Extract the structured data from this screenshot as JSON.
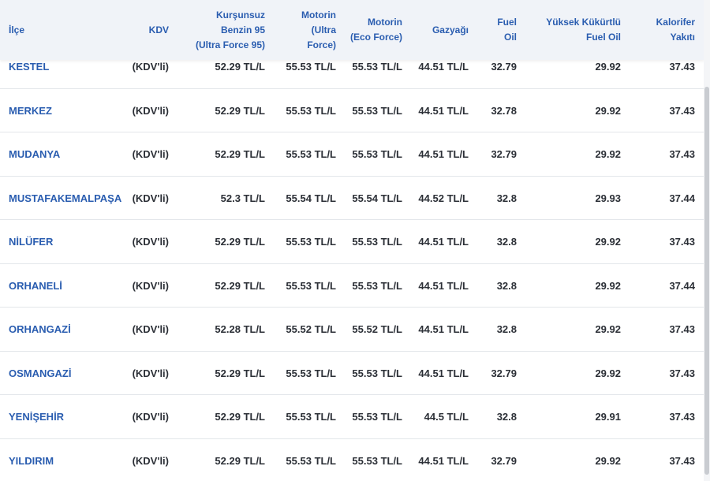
{
  "table": {
    "headers": {
      "ilce": "İlçe",
      "kdv": "KDV",
      "kursunsuz": [
        "Kurşunsuz",
        "Benzin 95",
        "(Ultra Force 95)"
      ],
      "motorin": [
        "Motorin",
        "(Ultra",
        "Force)"
      ],
      "motorin_eco": [
        "Motorin",
        "(Eco Force)"
      ],
      "gazyagi": "Gazyağı",
      "fuel_oil": [
        "Fuel",
        "Oil"
      ],
      "yuksek_kukurtlu": [
        "Yüksek Kükürtlü",
        "Fuel Oil"
      ],
      "kalorifer": [
        "Kalorifer",
        "Yakıtı"
      ]
    },
    "rows": [
      {
        "ilce": "KESTEL",
        "kdv": "(KDV'li)",
        "kursunsuz": "52.29 TL/L",
        "motorin": "55.53 TL/L",
        "motorin_eco": "55.53 TL/L",
        "gazyagi": "44.51 TL/L",
        "fuel_oil": "32.79",
        "yuksek_kukurtlu": "29.92",
        "kalorifer": "37.43"
      },
      {
        "ilce": "MERKEZ",
        "kdv": "(KDV'li)",
        "kursunsuz": "52.29 TL/L",
        "motorin": "55.53 TL/L",
        "motorin_eco": "55.53 TL/L",
        "gazyagi": "44.51 TL/L",
        "fuel_oil": "32.78",
        "yuksek_kukurtlu": "29.92",
        "kalorifer": "37.43"
      },
      {
        "ilce": "MUDANYA",
        "kdv": "(KDV'li)",
        "kursunsuz": "52.29 TL/L",
        "motorin": "55.53 TL/L",
        "motorin_eco": "55.53 TL/L",
        "gazyagi": "44.51 TL/L",
        "fuel_oil": "32.79",
        "yuksek_kukurtlu": "29.92",
        "kalorifer": "37.43"
      },
      {
        "ilce": "MUSTAFAKEMALPAŞA",
        "kdv": "(KDV'li)",
        "kursunsuz": "52.3 TL/L",
        "motorin": "55.54 TL/L",
        "motorin_eco": "55.54 TL/L",
        "gazyagi": "44.52 TL/L",
        "fuel_oil": "32.8",
        "yuksek_kukurtlu": "29.93",
        "kalorifer": "37.44"
      },
      {
        "ilce": "NİLÜFER",
        "kdv": "(KDV'li)",
        "kursunsuz": "52.29 TL/L",
        "motorin": "55.53 TL/L",
        "motorin_eco": "55.53 TL/L",
        "gazyagi": "44.51 TL/L",
        "fuel_oil": "32.8",
        "yuksek_kukurtlu": "29.92",
        "kalorifer": "37.43"
      },
      {
        "ilce": "ORHANELİ",
        "kdv": "(KDV'li)",
        "kursunsuz": "52.29 TL/L",
        "motorin": "55.53 TL/L",
        "motorin_eco": "55.53 TL/L",
        "gazyagi": "44.51 TL/L",
        "fuel_oil": "32.8",
        "yuksek_kukurtlu": "29.92",
        "kalorifer": "37.44"
      },
      {
        "ilce": "ORHANGAZİ",
        "kdv": "(KDV'li)",
        "kursunsuz": "52.28 TL/L",
        "motorin": "55.52 TL/L",
        "motorin_eco": "55.52 TL/L",
        "gazyagi": "44.51 TL/L",
        "fuel_oil": "32.8",
        "yuksek_kukurtlu": "29.92",
        "kalorifer": "37.43"
      },
      {
        "ilce": "OSMANGAZİ",
        "kdv": "(KDV'li)",
        "kursunsuz": "52.29 TL/L",
        "motorin": "55.53 TL/L",
        "motorin_eco": "55.53 TL/L",
        "gazyagi": "44.51 TL/L",
        "fuel_oil": "32.79",
        "yuksek_kukurtlu": "29.92",
        "kalorifer": "37.43"
      },
      {
        "ilce": "YENİŞEHİR",
        "kdv": "(KDV'li)",
        "kursunsuz": "52.29 TL/L",
        "motorin": "55.53 TL/L",
        "motorin_eco": "55.53 TL/L",
        "gazyagi": "44.5 TL/L",
        "fuel_oil": "32.8",
        "yuksek_kukurtlu": "29.91",
        "kalorifer": "37.43"
      },
      {
        "ilce": "YILDIRIM",
        "kdv": "(KDV'li)",
        "kursunsuz": "52.29 TL/L",
        "motorin": "55.53 TL/L",
        "motorin_eco": "55.53 TL/L",
        "gazyagi": "44.51 TL/L",
        "fuel_oil": "32.79",
        "yuksek_kukurtlu": "29.92",
        "kalorifer": "37.43"
      }
    ]
  },
  "colors": {
    "header_bg": "#f0f3f8",
    "header_text": "#2a5db0",
    "district_link": "#2a5db0",
    "cell_text": "#2b2f36",
    "row_border": "#e3e6ea"
  }
}
